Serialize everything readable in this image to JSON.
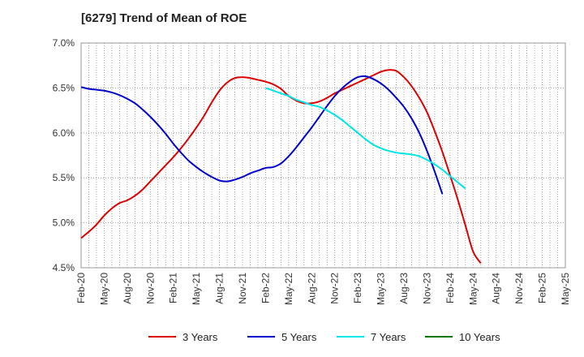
{
  "chart_data": {
    "type": "line",
    "title": "[6279]  Trend of Mean of ROE",
    "xlabel": "",
    "ylabel": "",
    "ylim": [
      4.5,
      7.0
    ],
    "yticks": [
      "4.5%",
      "5.0%",
      "5.5%",
      "6.0%",
      "6.5%",
      "7.0%"
    ],
    "yticks_values": [
      4.5,
      5.0,
      5.5,
      6.0,
      6.5,
      7.0
    ],
    "x_tick_labels": [
      "Feb-20",
      "May-20",
      "Aug-20",
      "Nov-20",
      "Feb-21",
      "May-21",
      "Aug-21",
      "Nov-21",
      "Feb-22",
      "May-22",
      "Aug-22",
      "Nov-22",
      "Feb-23",
      "May-23",
      "Aug-23",
      "Nov-23",
      "Feb-24",
      "May-24",
      "Aug-24",
      "Nov-24",
      "Feb-25",
      "May-25"
    ],
    "grid": true,
    "legend_position": "bottom",
    "series": [
      {
        "name": "3 Years",
        "color": "#dd0000",
        "start": "Feb-20",
        "values": [
          4.83,
          4.9,
          4.98,
          5.08,
          5.16,
          5.22,
          5.25,
          5.3,
          5.37,
          5.46,
          5.55,
          5.64,
          5.73,
          5.83,
          5.94,
          6.06,
          6.19,
          6.34,
          6.47,
          6.56,
          6.61,
          6.62,
          6.61,
          6.59,
          6.57,
          6.54,
          6.49,
          6.41,
          6.36,
          6.33,
          6.33,
          6.35,
          6.39,
          6.44,
          6.48,
          6.52,
          6.56,
          6.6,
          6.64,
          6.68,
          6.7,
          6.69,
          6.62,
          6.52,
          6.39,
          6.23,
          6.02,
          5.79,
          5.53,
          5.26,
          4.97,
          4.68,
          4.55
        ]
      },
      {
        "name": "5 Years",
        "color": "#0000cc",
        "start": "Feb-20",
        "values": [
          6.51,
          6.49,
          6.48,
          6.47,
          6.45,
          6.42,
          6.38,
          6.33,
          6.26,
          6.18,
          6.09,
          5.99,
          5.88,
          5.78,
          5.69,
          5.62,
          5.56,
          5.51,
          5.47,
          5.46,
          5.48,
          5.51,
          5.55,
          5.58,
          5.61,
          5.62,
          5.66,
          5.74,
          5.84,
          5.95,
          6.06,
          6.18,
          6.3,
          6.41,
          6.5,
          6.57,
          6.62,
          6.63,
          6.6,
          6.55,
          6.48,
          6.39,
          6.29,
          6.16,
          6.0,
          5.8,
          5.57,
          5.32
        ]
      },
      {
        "name": "7 Years",
        "color": "#00e5e5",
        "start": "Feb-22",
        "values": [
          6.5,
          6.47,
          6.44,
          6.41,
          6.37,
          6.34,
          6.31,
          6.29,
          6.25,
          6.2,
          6.14,
          6.07,
          6.0,
          5.93,
          5.87,
          5.83,
          5.8,
          5.78,
          5.77,
          5.76,
          5.74,
          5.7,
          5.65,
          5.59,
          5.52,
          5.45,
          5.38
        ]
      },
      {
        "name": "10 Years",
        "color": "#007700",
        "start": "Feb-20",
        "values": []
      }
    ]
  }
}
